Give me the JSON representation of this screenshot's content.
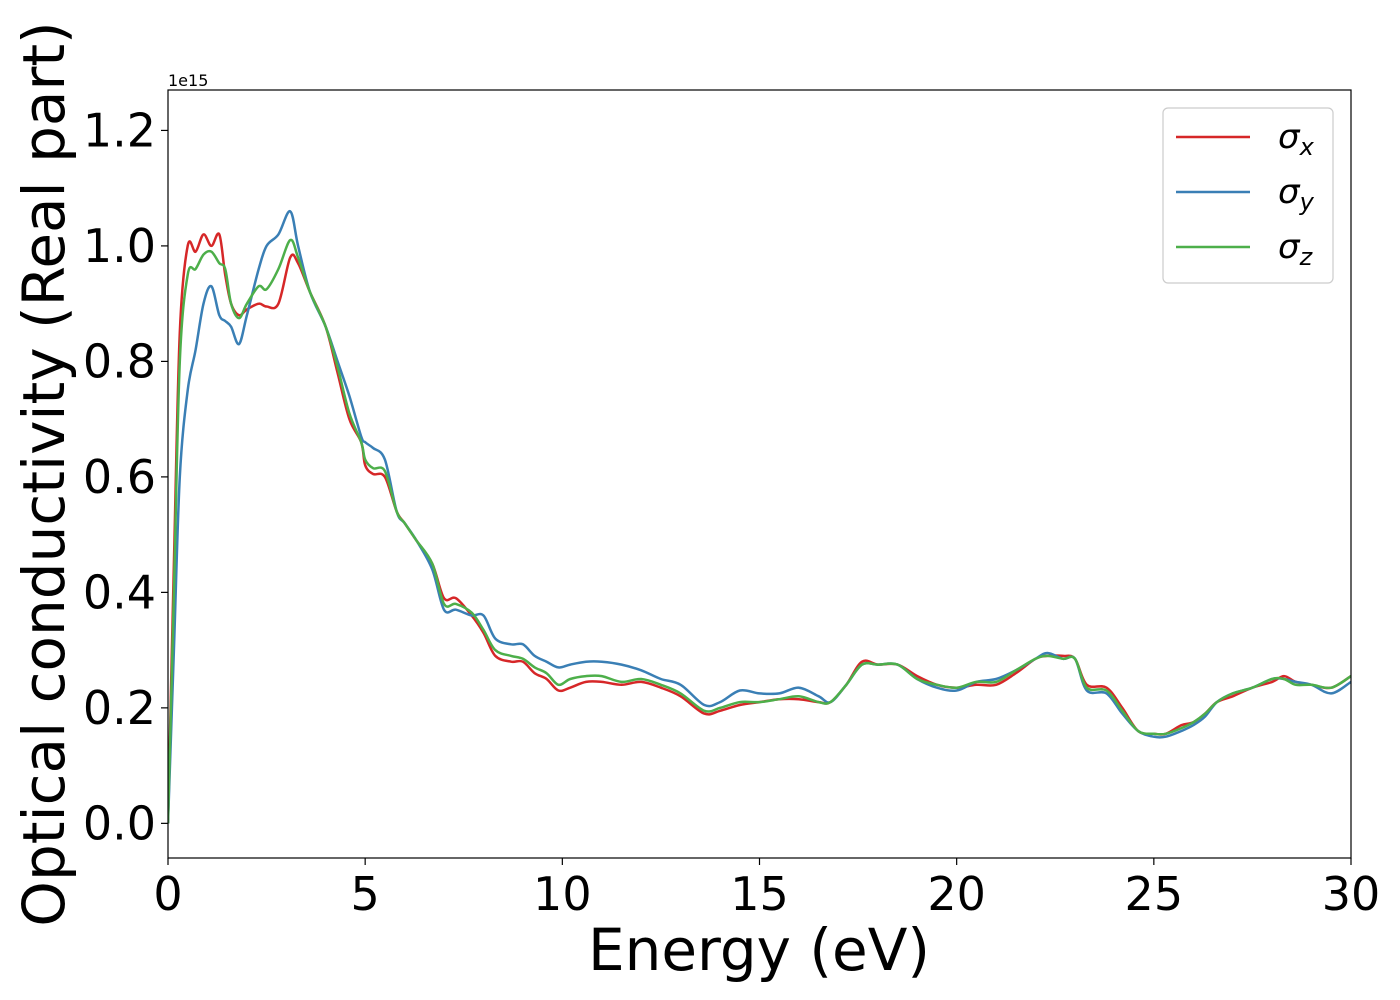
{
  "chart_data": {
    "type": "line",
    "title": "",
    "xlabel": "Energy (eV)",
    "ylabel": "Optical conductivity (Real part)",
    "offset_text": "1e15",
    "xlim": [
      0,
      30
    ],
    "ylim": [
      -0.06,
      1.27
    ],
    "xticks": [
      0,
      5,
      10,
      15,
      20,
      25,
      30
    ],
    "xtick_labels": [
      "0",
      "5",
      "10",
      "15",
      "20",
      "25",
      "30"
    ],
    "yticks": [
      0.0,
      0.2,
      0.4,
      0.6,
      0.8,
      1.0,
      1.2
    ],
    "ytick_labels": [
      "0.0",
      "0.2",
      "0.4",
      "0.6",
      "0.8",
      "1.0",
      "1.2"
    ],
    "grid": false,
    "legend_position": "top-right",
    "series": [
      {
        "name": "σ",
        "subscript": "x",
        "color": "#d62728",
        "x": [
          0,
          0.15,
          0.3,
          0.5,
          0.7,
          0.9,
          1.1,
          1.3,
          1.45,
          1.6,
          1.8,
          2.0,
          2.3,
          2.5,
          2.8,
          3.1,
          3.3,
          3.6,
          4.0,
          4.3,
          4.6,
          4.9,
          5.0,
          5.2,
          5.5,
          5.8,
          6.0,
          6.3,
          6.7,
          7.0,
          7.3,
          7.7,
          8.0,
          8.3,
          8.7,
          9.0,
          9.3,
          9.6,
          9.9,
          10.2,
          10.6,
          11.0,
          11.5,
          12.0,
          12.5,
          13.0,
          13.6,
          14.0,
          14.5,
          15.0,
          15.5,
          16.0,
          16.5,
          16.8,
          17.2,
          17.6,
          18.0,
          18.5,
          19.0,
          19.5,
          20.0,
          20.5,
          21.0,
          21.5,
          22.0,
          22.3,
          22.7,
          23.0,
          23.3,
          23.8,
          24.2,
          24.6,
          25.0,
          25.3,
          25.7,
          26.0,
          26.3,
          26.6,
          27.0,
          27.5,
          28.0,
          28.3,
          28.6,
          29.0,
          29.5,
          30.0
        ],
        "y": [
          0.0,
          0.45,
          0.85,
          1.0,
          0.99,
          1.02,
          1.0,
          1.02,
          0.95,
          0.9,
          0.88,
          0.89,
          0.9,
          0.895,
          0.9,
          0.98,
          0.97,
          0.92,
          0.86,
          0.78,
          0.7,
          0.66,
          0.62,
          0.605,
          0.6,
          0.54,
          0.52,
          0.49,
          0.45,
          0.39,
          0.39,
          0.36,
          0.33,
          0.29,
          0.28,
          0.28,
          0.26,
          0.25,
          0.23,
          0.235,
          0.245,
          0.245,
          0.24,
          0.245,
          0.235,
          0.22,
          0.19,
          0.195,
          0.205,
          0.21,
          0.215,
          0.215,
          0.21,
          0.21,
          0.24,
          0.28,
          0.275,
          0.275,
          0.255,
          0.24,
          0.235,
          0.24,
          0.24,
          0.26,
          0.285,
          0.29,
          0.29,
          0.285,
          0.24,
          0.235,
          0.2,
          0.16,
          0.155,
          0.155,
          0.17,
          0.175,
          0.19,
          0.21,
          0.22,
          0.235,
          0.245,
          0.255,
          0.245,
          0.24,
          0.235,
          0.255
        ]
      },
      {
        "name": "σ",
        "subscript": "y",
        "color": "#3a7fb5",
        "x": [
          0,
          0.15,
          0.3,
          0.5,
          0.7,
          0.9,
          1.1,
          1.3,
          1.45,
          1.6,
          1.8,
          2.0,
          2.3,
          2.5,
          2.8,
          3.1,
          3.3,
          3.6,
          4.0,
          4.3,
          4.6,
          4.9,
          5.0,
          5.2,
          5.5,
          5.8,
          6.0,
          6.3,
          6.7,
          7.0,
          7.3,
          7.7,
          8.0,
          8.3,
          8.7,
          9.0,
          9.3,
          9.6,
          9.9,
          10.2,
          10.6,
          11.0,
          11.5,
          12.0,
          12.5,
          13.0,
          13.6,
          14.0,
          14.5,
          15.0,
          15.5,
          16.0,
          16.5,
          16.8,
          17.2,
          17.6,
          18.0,
          18.5,
          19.0,
          19.5,
          20.0,
          20.5,
          21.0,
          21.5,
          22.0,
          22.3,
          22.7,
          23.0,
          23.3,
          23.8,
          24.2,
          24.6,
          25.0,
          25.3,
          25.7,
          26.0,
          26.3,
          26.6,
          27.0,
          27.5,
          28.0,
          28.3,
          28.6,
          29.0,
          29.5,
          30.0
        ],
        "y": [
          0.0,
          0.3,
          0.6,
          0.75,
          0.82,
          0.9,
          0.93,
          0.88,
          0.87,
          0.86,
          0.83,
          0.88,
          0.96,
          1.0,
          1.02,
          1.06,
          1.0,
          0.92,
          0.86,
          0.8,
          0.74,
          0.67,
          0.66,
          0.65,
          0.63,
          0.54,
          0.52,
          0.49,
          0.44,
          0.37,
          0.37,
          0.36,
          0.36,
          0.32,
          0.31,
          0.31,
          0.29,
          0.28,
          0.27,
          0.275,
          0.28,
          0.28,
          0.275,
          0.265,
          0.25,
          0.24,
          0.205,
          0.21,
          0.23,
          0.225,
          0.225,
          0.235,
          0.22,
          0.21,
          0.24,
          0.275,
          0.275,
          0.275,
          0.25,
          0.235,
          0.23,
          0.245,
          0.25,
          0.265,
          0.285,
          0.295,
          0.285,
          0.285,
          0.23,
          0.225,
          0.19,
          0.16,
          0.15,
          0.15,
          0.16,
          0.17,
          0.185,
          0.21,
          0.225,
          0.235,
          0.25,
          0.25,
          0.245,
          0.24,
          0.225,
          0.245
        ]
      },
      {
        "name": "σ",
        "subscript": "z",
        "color": "#4daf4a",
        "x": [
          0,
          0.15,
          0.3,
          0.5,
          0.7,
          0.9,
          1.1,
          1.3,
          1.45,
          1.6,
          1.8,
          2.0,
          2.3,
          2.5,
          2.8,
          3.1,
          3.3,
          3.6,
          4.0,
          4.3,
          4.6,
          4.9,
          5.0,
          5.2,
          5.5,
          5.8,
          6.0,
          6.3,
          6.7,
          7.0,
          7.3,
          7.7,
          8.0,
          8.3,
          8.7,
          9.0,
          9.3,
          9.6,
          9.9,
          10.2,
          10.6,
          11.0,
          11.5,
          12.0,
          12.5,
          13.0,
          13.6,
          14.0,
          14.5,
          15.0,
          15.5,
          16.0,
          16.5,
          16.8,
          17.2,
          17.6,
          18.0,
          18.5,
          19.0,
          19.5,
          20.0,
          20.5,
          21.0,
          21.5,
          22.0,
          22.3,
          22.7,
          23.0,
          23.3,
          23.8,
          24.2,
          24.6,
          25.0,
          25.3,
          25.7,
          26.0,
          26.3,
          26.6,
          27.0,
          27.5,
          28.0,
          28.3,
          28.6,
          29.0,
          29.5,
          30.0
        ],
        "y": [
          0.0,
          0.4,
          0.8,
          0.95,
          0.96,
          0.985,
          0.99,
          0.97,
          0.96,
          0.9,
          0.875,
          0.9,
          0.93,
          0.925,
          0.96,
          1.01,
          0.98,
          0.92,
          0.86,
          0.79,
          0.71,
          0.66,
          0.63,
          0.615,
          0.61,
          0.54,
          0.52,
          0.49,
          0.45,
          0.38,
          0.38,
          0.365,
          0.335,
          0.3,
          0.29,
          0.285,
          0.27,
          0.26,
          0.24,
          0.25,
          0.255,
          0.255,
          0.245,
          0.25,
          0.24,
          0.225,
          0.195,
          0.2,
          0.21,
          0.21,
          0.215,
          0.22,
          0.21,
          0.21,
          0.24,
          0.275,
          0.275,
          0.275,
          0.25,
          0.24,
          0.235,
          0.245,
          0.245,
          0.265,
          0.285,
          0.29,
          0.285,
          0.285,
          0.235,
          0.23,
          0.195,
          0.16,
          0.155,
          0.155,
          0.165,
          0.175,
          0.19,
          0.21,
          0.225,
          0.235,
          0.25,
          0.25,
          0.24,
          0.24,
          0.235,
          0.255
        ]
      }
    ]
  }
}
